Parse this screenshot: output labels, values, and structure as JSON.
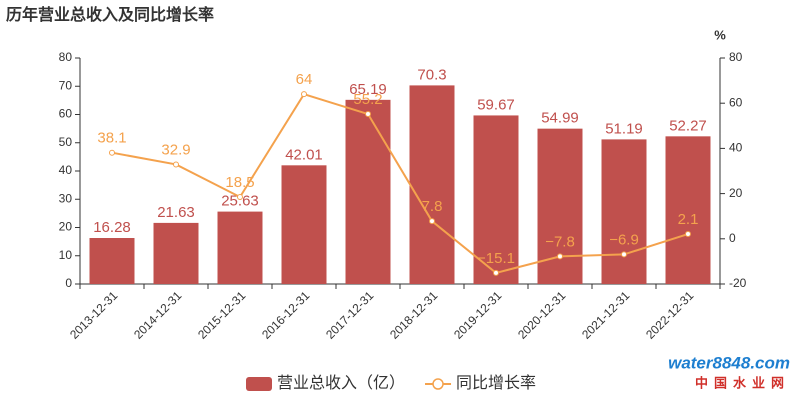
{
  "chart_data": {
    "type": "bar",
    "title": "历年营业总收入及同比增长率",
    "categories": [
      "2013-12-31",
      "2014-12-31",
      "2015-12-31",
      "2016-12-31",
      "2017-12-31",
      "2018-12-31",
      "2019-12-31",
      "2020-12-31",
      "2021-12-31",
      "2022-12-31"
    ],
    "series": [
      {
        "name": "营业总收入（亿）",
        "type": "bar",
        "color": "#c0504d",
        "values": [
          16.28,
          21.63,
          25.63,
          42.01,
          65.19,
          70.3,
          59.67,
          54.99,
          51.19,
          52.27
        ]
      },
      {
        "name": "同比增长率",
        "type": "line",
        "axis": "y2",
        "color": "#f4a24d",
        "values": [
          38.1,
          32.9,
          18.5,
          64,
          55.2,
          7.8,
          -15.1,
          -7.8,
          -6.9,
          2.1
        ],
        "value_labels": [
          "38.1",
          "32.9",
          "18.5",
          "64",
          "55.2",
          "7.8",
          "−15.1",
          "−7.8",
          "−6.9",
          "2.1"
        ]
      }
    ],
    "ylim": [
      0,
      80
    ],
    "yticks": [
      0,
      10,
      20,
      30,
      40,
      50,
      60,
      70,
      80
    ],
    "y2lim": [
      -20,
      80
    ],
    "y2ticks": [
      -20,
      0,
      20,
      40,
      60,
      80
    ],
    "y2label": "%",
    "legend": "bottom"
  },
  "watermark": {
    "brand": "water8848.com",
    "name": "中国水业网"
  }
}
